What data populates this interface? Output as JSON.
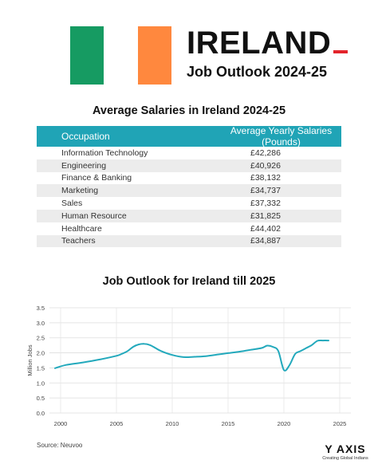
{
  "colors": {
    "flag_green": "#169B62",
    "flag_white": "#FFFFFF",
    "flag_orange": "#FF883E",
    "accent_red": "#E3242B",
    "table_header": "#20A4B6",
    "line": "#23A9BC"
  },
  "header": {
    "title": "IRELAND",
    "subtitle": "Job Outlook 2024-25"
  },
  "salary_table": {
    "title": "Average Salaries in Ireland 2024-25",
    "columns": [
      "Occupation",
      "Average Yearly Salaries (Pounds)"
    ],
    "rows": [
      [
        "Information Technology",
        "£42,286"
      ],
      [
        "Engineering",
        "£40,926"
      ],
      [
        "Finance & Banking",
        "£38,132"
      ],
      [
        "Marketing",
        "£34,737"
      ],
      [
        "Sales",
        "£37,332"
      ],
      [
        "Human Resource",
        "£31,825"
      ],
      [
        "Healthcare",
        "£44,402"
      ],
      [
        "Teachers",
        "£34,887"
      ]
    ]
  },
  "chart_data": {
    "type": "line",
    "title": "Job Outlook for Ireland till 2025",
    "xlabel": "",
    "ylabel": "Million Jobs",
    "xlim": [
      1999,
      2026
    ],
    "ylim": [
      0,
      3.5
    ],
    "x_ticks": [
      2000,
      2005,
      2010,
      2015,
      2020,
      2025
    ],
    "y_ticks": [
      0.0,
      0.5,
      1.0,
      1.5,
      2.0,
      2.5,
      3.0,
      3.5
    ],
    "grid": true,
    "series": [
      {
        "x": [
          1999.5,
          2000.5,
          2002,
          2003.5,
          2005,
          2005.5,
          2006,
          2006.5,
          2007,
          2007.5,
          2008,
          2008.5,
          2009,
          2010,
          2011,
          2012,
          2013,
          2014,
          2015,
          2016,
          2017,
          2018,
          2018.5,
          2019,
          2019.5,
          2020,
          2020.5,
          2021,
          2021.5,
          2022,
          2022.5,
          2023,
          2023.5,
          2024
        ],
        "y": [
          1.49,
          1.6,
          1.68,
          1.78,
          1.9,
          1.97,
          2.06,
          2.2,
          2.28,
          2.3,
          2.26,
          2.16,
          2.06,
          1.93,
          1.86,
          1.87,
          1.89,
          1.94,
          1.99,
          2.04,
          2.1,
          2.16,
          2.24,
          2.2,
          2.06,
          1.43,
          1.59,
          1.96,
          2.06,
          2.16,
          2.26,
          2.4,
          2.41,
          2.41
        ]
      }
    ]
  },
  "source": "Source: Neuvoo",
  "brand": {
    "name": "Y AXIS",
    "tagline": "Creating Global Indians"
  }
}
